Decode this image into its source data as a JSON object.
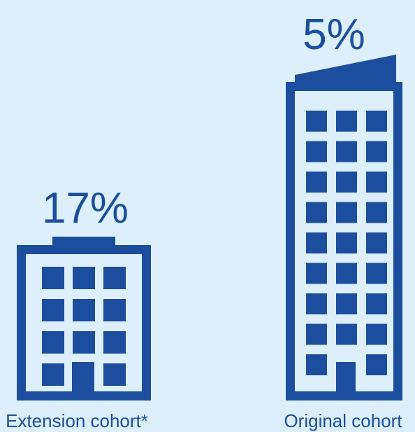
{
  "chart_data": {
    "type": "bar",
    "categories": [
      "Extension cohort*",
      "Original cohort"
    ],
    "values": [
      17,
      5
    ],
    "value_labels": [
      "17%",
      "5%"
    ],
    "unit": "%",
    "title": "",
    "xlabel": "",
    "ylabel": ""
  },
  "colors": {
    "background": "#DCEFFB",
    "building": "#1C4E9D"
  },
  "icons": [
    "small-office-building-icon",
    "tall-office-tower-icon"
  ]
}
